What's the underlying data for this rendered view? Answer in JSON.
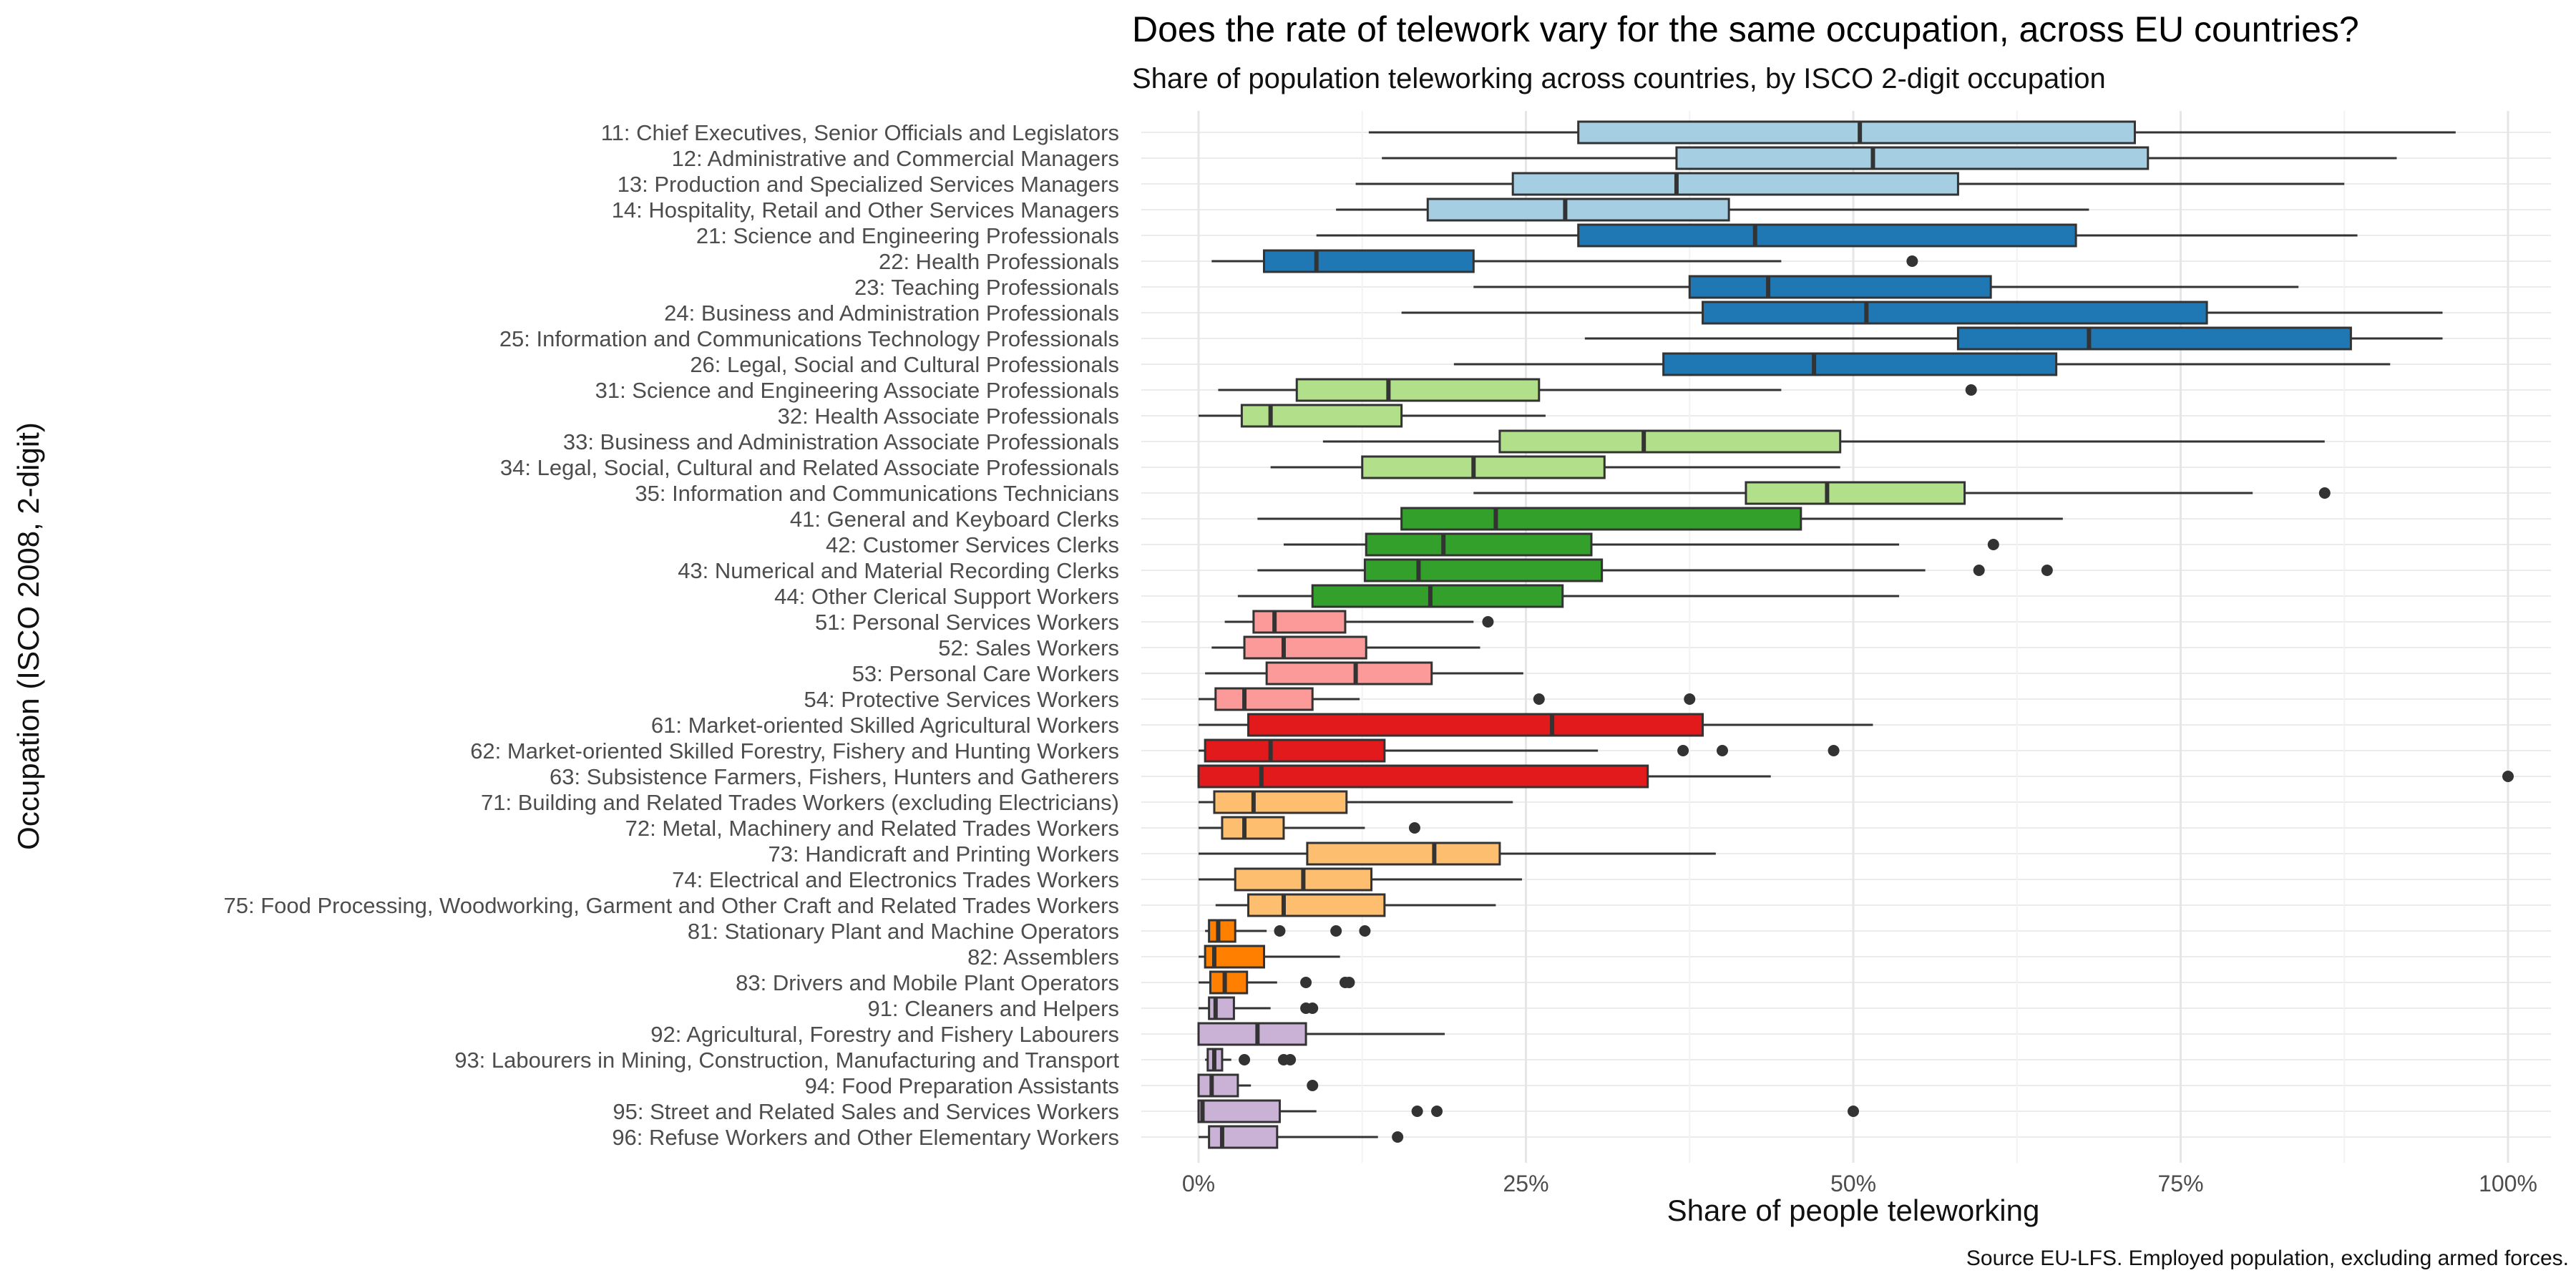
{
  "chart_data": {
    "type": "boxplot",
    "title": "Does the rate of telework vary for the same occupation, across EU countries?",
    "subtitle": "Share of population teleworking across countries, by ISCO 2-digit occupation",
    "xlabel": "Share of people teleworking",
    "ylabel": "Occupation (ISCO 2008, 2-digit)",
    "caption": "Source EU-LFS. Employed population, excluding armed forces.",
    "xlim": [
      0,
      1
    ],
    "x_ticks": [
      {
        "value": 0,
        "label": "0%"
      },
      {
        "value": 0.25,
        "label": "25%"
      },
      {
        "value": 0.5,
        "label": "50%"
      },
      {
        "value": 0.75,
        "label": "75%"
      },
      {
        "value": 1.0,
        "label": "100%"
      }
    ],
    "grid": true,
    "legend": "none",
    "group_colors": {
      "1": "#a6cee3",
      "2": "#1f78b4",
      "3": "#b2df8a",
      "4": "#33a02c",
      "5": "#fb9a99",
      "6": "#e31a1c",
      "7": "#fdbf6f",
      "8": "#ff7f00",
      "9": "#cab2d6"
    },
    "outline_color": "#333333",
    "categories": [
      {
        "label": "11: Chief Executives, Senior Officials and Legislators",
        "group": "1",
        "whisker_low": 0.13,
        "q1": 0.29,
        "median": 0.505,
        "q3": 0.715,
        "whisker_high": 0.96,
        "outliers": []
      },
      {
        "label": "12: Administrative and Commercial Managers",
        "group": "1",
        "whisker_low": 0.14,
        "q1": 0.365,
        "median": 0.515,
        "q3": 0.725,
        "whisker_high": 0.915,
        "outliers": []
      },
      {
        "label": "13: Production and Specialized Services Managers",
        "group": "1",
        "whisker_low": 0.12,
        "q1": 0.24,
        "median": 0.365,
        "q3": 0.58,
        "whisker_high": 0.875,
        "outliers": []
      },
      {
        "label": "14: Hospitality, Retail and Other Services Managers",
        "group": "1",
        "whisker_low": 0.105,
        "q1": 0.175,
        "median": 0.28,
        "q3": 0.405,
        "whisker_high": 0.68,
        "outliers": []
      },
      {
        "label": "21: Science and Engineering Professionals",
        "group": "2",
        "whisker_low": 0.09,
        "q1": 0.29,
        "median": 0.425,
        "q3": 0.67,
        "whisker_high": 0.885,
        "outliers": []
      },
      {
        "label": "22: Health Professionals",
        "group": "2",
        "whisker_low": 0.01,
        "q1": 0.05,
        "median": 0.09,
        "q3": 0.21,
        "whisker_high": 0.445,
        "outliers": [
          0.545
        ]
      },
      {
        "label": "23: Teaching Professionals",
        "group": "2",
        "whisker_low": 0.21,
        "q1": 0.375,
        "median": 0.435,
        "q3": 0.605,
        "whisker_high": 0.84,
        "outliers": []
      },
      {
        "label": "24: Business and Administration Professionals",
        "group": "2",
        "whisker_low": 0.155,
        "q1": 0.385,
        "median": 0.51,
        "q3": 0.77,
        "whisker_high": 0.95,
        "outliers": []
      },
      {
        "label": "25: Information and Communications Technology Professionals",
        "group": "2",
        "whisker_low": 0.295,
        "q1": 0.58,
        "median": 0.68,
        "q3": 0.88,
        "whisker_high": 0.95,
        "outliers": []
      },
      {
        "label": "26: Legal, Social and Cultural Professionals",
        "group": "2",
        "whisker_low": 0.195,
        "q1": 0.355,
        "median": 0.47,
        "q3": 0.655,
        "whisker_high": 0.91,
        "outliers": []
      },
      {
        "label": "31: Science and Engineering Associate Professionals",
        "group": "3",
        "whisker_low": 0.015,
        "q1": 0.075,
        "median": 0.145,
        "q3": 0.26,
        "whisker_high": 0.445,
        "outliers": [
          0.59
        ]
      },
      {
        "label": "32: Health Associate Professionals",
        "group": "3",
        "whisker_low": 0.0,
        "q1": 0.033,
        "median": 0.055,
        "q3": 0.155,
        "whisker_high": 0.265,
        "outliers": []
      },
      {
        "label": "33: Business and Administration Associate Professionals",
        "group": "3",
        "whisker_low": 0.095,
        "q1": 0.23,
        "median": 0.34,
        "q3": 0.49,
        "whisker_high": 0.86,
        "outliers": []
      },
      {
        "label": "34: Legal, Social, Cultural and Related Associate Professionals",
        "group": "3",
        "whisker_low": 0.055,
        "q1": 0.125,
        "median": 0.21,
        "q3": 0.31,
        "whisker_high": 0.49,
        "outliers": []
      },
      {
        "label": "35: Information and Communications Technicians",
        "group": "3",
        "whisker_low": 0.21,
        "q1": 0.418,
        "median": 0.48,
        "q3": 0.585,
        "whisker_high": 0.805,
        "outliers": [
          0.86
        ]
      },
      {
        "label": "41: General and Keyboard Clerks",
        "group": "4",
        "whisker_low": 0.045,
        "q1": 0.155,
        "median": 0.227,
        "q3": 0.46,
        "whisker_high": 0.66,
        "outliers": []
      },
      {
        "label": "42: Customer Services Clerks",
        "group": "4",
        "whisker_low": 0.065,
        "q1": 0.128,
        "median": 0.187,
        "q3": 0.3,
        "whisker_high": 0.535,
        "outliers": [
          0.607
        ]
      },
      {
        "label": "43: Numerical and Material Recording Clerks",
        "group": "4",
        "whisker_low": 0.045,
        "q1": 0.127,
        "median": 0.168,
        "q3": 0.308,
        "whisker_high": 0.555,
        "outliers": [
          0.596,
          0.648
        ]
      },
      {
        "label": "44: Other Clerical Support Workers",
        "group": "4",
        "whisker_low": 0.03,
        "q1": 0.087,
        "median": 0.177,
        "q3": 0.278,
        "whisker_high": 0.535,
        "outliers": []
      },
      {
        "label": "51: Personal Services Workers",
        "group": "5",
        "whisker_low": 0.02,
        "q1": 0.042,
        "median": 0.058,
        "q3": 0.112,
        "whisker_high": 0.21,
        "outliers": [
          0.221
        ]
      },
      {
        "label": "52: Sales Workers",
        "group": "5",
        "whisker_low": 0.01,
        "q1": 0.035,
        "median": 0.065,
        "q3": 0.128,
        "whisker_high": 0.215,
        "outliers": []
      },
      {
        "label": "53: Personal Care Workers",
        "group": "5",
        "whisker_low": 0.005,
        "q1": 0.052,
        "median": 0.12,
        "q3": 0.178,
        "whisker_high": 0.248,
        "outliers": []
      },
      {
        "label": "54: Protective Services Workers",
        "group": "5",
        "whisker_low": 0.0,
        "q1": 0.013,
        "median": 0.035,
        "q3": 0.087,
        "whisker_high": 0.123,
        "outliers": [
          0.26,
          0.375
        ]
      },
      {
        "label": "61: Market-oriented Skilled Agricultural Workers",
        "group": "6",
        "whisker_low": 0.0,
        "q1": 0.038,
        "median": 0.27,
        "q3": 0.385,
        "whisker_high": 0.515,
        "outliers": []
      },
      {
        "label": "62: Market-oriented Skilled Forestry, Fishery and Hunting Workers",
        "group": "6",
        "whisker_low": 0.0,
        "q1": 0.005,
        "median": 0.055,
        "q3": 0.142,
        "whisker_high": 0.305,
        "outliers": [
          0.37,
          0.4,
          0.485
        ]
      },
      {
        "label": "63: Subsistence Farmers, Fishers, Hunters and Gatherers",
        "group": "6",
        "whisker_low": 0.0,
        "q1": 0.0,
        "median": 0.048,
        "q3": 0.343,
        "whisker_high": 0.437,
        "outliers": [
          1.0
        ]
      },
      {
        "label": "71: Building and Related Trades Workers (excluding Electricians)",
        "group": "7",
        "whisker_low": 0.0,
        "q1": 0.012,
        "median": 0.042,
        "q3": 0.113,
        "whisker_high": 0.24,
        "outliers": []
      },
      {
        "label": "72: Metal, Machinery and Related Trades Workers",
        "group": "7",
        "whisker_low": 0.0,
        "q1": 0.018,
        "median": 0.035,
        "q3": 0.065,
        "whisker_high": 0.127,
        "outliers": [
          0.165
        ]
      },
      {
        "label": "73: Handicraft and Printing Workers",
        "group": "7",
        "whisker_low": 0.0,
        "q1": 0.083,
        "median": 0.18,
        "q3": 0.23,
        "whisker_high": 0.395,
        "outliers": []
      },
      {
        "label": "74: Electrical and Electronics Trades Workers",
        "group": "7",
        "whisker_low": 0.0,
        "q1": 0.028,
        "median": 0.08,
        "q3": 0.132,
        "whisker_high": 0.247,
        "outliers": []
      },
      {
        "label": "75: Food Processing, Woodworking, Garment and Other Craft and Related Trades Workers",
        "group": "7",
        "whisker_low": 0.013,
        "q1": 0.038,
        "median": 0.065,
        "q3": 0.142,
        "whisker_high": 0.227,
        "outliers": []
      },
      {
        "label": "81: Stationary Plant and Machine Operators",
        "group": "8",
        "whisker_low": 0.005,
        "q1": 0.008,
        "median": 0.015,
        "q3": 0.028,
        "whisker_high": 0.052,
        "outliers": [
          0.062,
          0.105,
          0.127
        ]
      },
      {
        "label": "82: Assemblers",
        "group": "8",
        "whisker_low": 0.0,
        "q1": 0.005,
        "median": 0.012,
        "q3": 0.05,
        "whisker_high": 0.108,
        "outliers": []
      },
      {
        "label": "83: Drivers and Mobile Plant Operators",
        "group": "8",
        "whisker_low": 0.0,
        "q1": 0.009,
        "median": 0.02,
        "q3": 0.037,
        "whisker_high": 0.06,
        "outliers": [
          0.082,
          0.112,
          0.115
        ]
      },
      {
        "label": "91: Cleaners and Helpers",
        "group": "9",
        "whisker_low": 0.0,
        "q1": 0.008,
        "median": 0.013,
        "q3": 0.027,
        "whisker_high": 0.055,
        "outliers": [
          0.082,
          0.087
        ]
      },
      {
        "label": "92: Agricultural, Forestry and Fishery Labourers",
        "group": "9",
        "whisker_low": 0.0,
        "q1": 0.0,
        "median": 0.045,
        "q3": 0.082,
        "whisker_high": 0.188,
        "outliers": []
      },
      {
        "label": "93: Labourers in Mining, Construction, Manufacturing and Transport",
        "group": "9",
        "whisker_low": 0.005,
        "q1": 0.007,
        "median": 0.012,
        "q3": 0.018,
        "whisker_high": 0.025,
        "outliers": [
          0.035,
          0.065,
          0.07
        ]
      },
      {
        "label": "94: Food Preparation Assistants",
        "group": "9",
        "whisker_low": 0.0,
        "q1": 0.0,
        "median": 0.01,
        "q3": 0.03,
        "whisker_high": 0.04,
        "outliers": [
          0.087
        ]
      },
      {
        "label": "95: Street and Related Sales and Services Workers",
        "group": "9",
        "whisker_low": 0.0,
        "q1": 0.0,
        "median": 0.003,
        "q3": 0.062,
        "whisker_high": 0.09,
        "outliers": [
          0.167,
          0.182,
          0.5
        ]
      },
      {
        "label": "96: Refuse Workers and Other Elementary Workers",
        "group": "9",
        "whisker_low": 0.0,
        "q1": 0.008,
        "median": 0.018,
        "q3": 0.06,
        "whisker_high": 0.137,
        "outliers": [
          0.152
        ]
      }
    ]
  }
}
